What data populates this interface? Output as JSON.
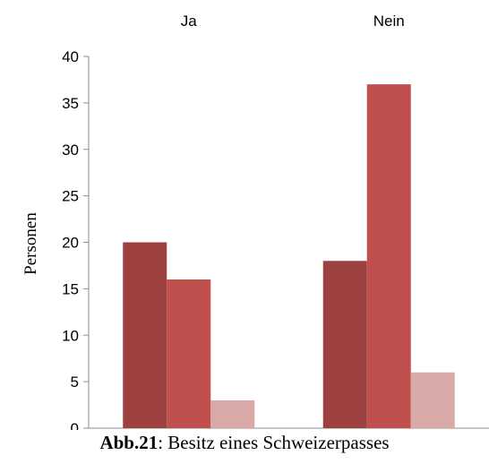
{
  "chart_data": {
    "type": "bar",
    "categories": [
      "Ja",
      "Nein"
    ],
    "series": [
      {
        "values": [
          20,
          18
        ],
        "color": "#9c4140"
      },
      {
        "values": [
          16,
          37
        ],
        "color": "#c0504d"
      },
      {
        "values": [
          3,
          6
        ],
        "color": "#d9a9a8"
      }
    ],
    "ylabel": "Personen",
    "ylim": [
      0,
      40
    ],
    "yticks": [
      0,
      5,
      10,
      15,
      20,
      25,
      30,
      35,
      40
    ],
    "category_labels_position": "top",
    "grid": false,
    "legend": "none"
  },
  "caption": {
    "label": "Abb.21",
    "text": ": Besitz eines Schweizerpasses"
  }
}
